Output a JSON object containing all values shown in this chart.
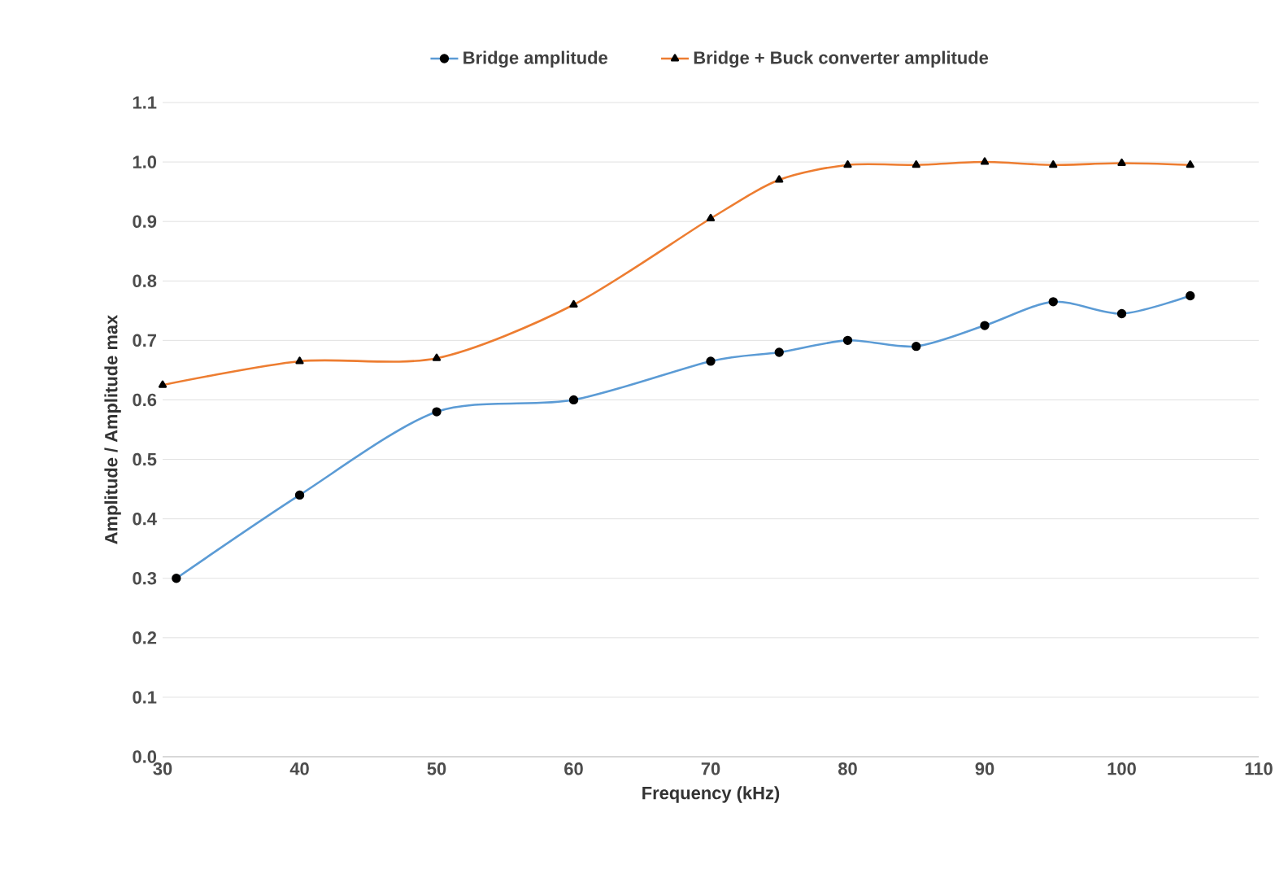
{
  "chart_data": {
    "type": "line",
    "xlabel": "Frequency (kHz)",
    "ylabel": "Amplitude / Amplitude max",
    "xlim": [
      30,
      110
    ],
    "xticks": [
      30,
      40,
      50,
      60,
      70,
      80,
      90,
      100,
      110
    ],
    "ylim": [
      0,
      1.1
    ],
    "yticks": [
      {
        "value": 0,
        "label": "0.0"
      },
      0.1,
      0.2,
      0.3,
      0.4,
      0.5,
      0.6,
      0.7,
      0.8,
      0.9,
      {
        "value": 1,
        "label": "1.0"
      },
      1.1
    ],
    "grid": "y",
    "legend": "top",
    "series": [
      {
        "name": "Bridge amplitude",
        "color": "#5b9bd5",
        "marker": "circle",
        "x": [
          31,
          40,
          50,
          60,
          70,
          75,
          80,
          85,
          90,
          95,
          100,
          105
        ],
        "values": [
          0.3,
          0.44,
          0.58,
          0.6,
          0.665,
          0.68,
          0.7,
          0.69,
          0.725,
          0.765,
          0.745,
          0.775
        ]
      },
      {
        "name": "Bridge + Buck converter amplitude",
        "color": "#ed7d31",
        "marker": "triangle",
        "x": [
          30,
          40,
          50,
          60,
          70,
          75,
          80,
          85,
          90,
          95,
          100,
          105
        ],
        "values": [
          0.625,
          0.665,
          0.67,
          0.76,
          0.905,
          0.97,
          0.995,
          0.995,
          1.0,
          0.995,
          0.998,
          0.995
        ]
      }
    ]
  }
}
